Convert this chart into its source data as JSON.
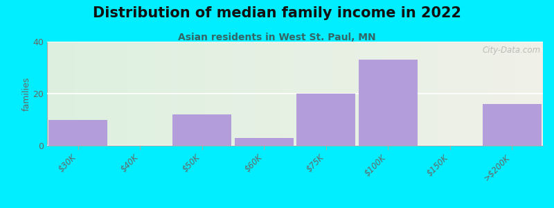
{
  "title": "Distribution of median family income in 2022",
  "subtitle": "Asian residents in West St. Paul, MN",
  "categories": [
    "$30K",
    "$40K",
    "$50K",
    "$60K",
    "$75K",
    "$100K",
    "$150K",
    ">$200K"
  ],
  "values": [
    10,
    0,
    12,
    3,
    20,
    33,
    0,
    16
  ],
  "bar_color": "#b39ddb",
  "background_outer": "#00eeff",
  "background_inner_left": "#ddf0e0",
  "background_inner_right": "#f0f0e8",
  "ylim": [
    0,
    40
  ],
  "yticks": [
    0,
    20,
    40
  ],
  "ylabel": "families",
  "title_fontsize": 15,
  "subtitle_fontsize": 10,
  "watermark": "City-Data.com"
}
